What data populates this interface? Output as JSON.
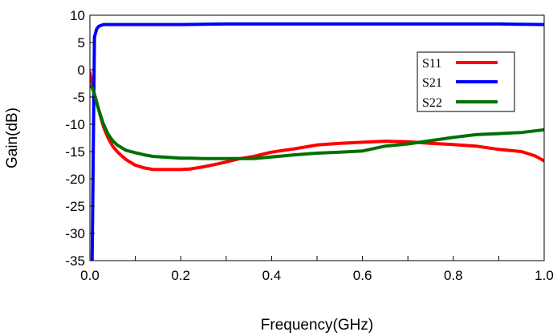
{
  "chart_data": {
    "type": "line",
    "title": "",
    "xlabel": "Frequency(GHz)",
    "ylabel": "Gain(dB)",
    "xlim": [
      0,
      1.0
    ],
    "ylim": [
      -35,
      10
    ],
    "x_ticks": [
      0,
      0.2,
      0.4,
      0.6,
      0.8,
      1.0
    ],
    "x_tick_labels": [
      "0.0",
      "0.2",
      "0.4",
      "0.6",
      "0.8",
      "1.0"
    ],
    "y_ticks": [
      10,
      5,
      0,
      -5,
      -10,
      -15,
      -20,
      -25,
      -30,
      -35
    ],
    "y_tick_labels": [
      "10",
      "5",
      "0",
      "-5",
      "-10",
      "-15",
      "-20",
      "-25",
      "-30",
      "-35"
    ],
    "grid": false,
    "legend_position": "top-right",
    "series": [
      {
        "name": "S11",
        "color": "#ff0000",
        "x": [
          0.0,
          0.005,
          0.01,
          0.02,
          0.03,
          0.04,
          0.05,
          0.06,
          0.07,
          0.08,
          0.09,
          0.1,
          0.12,
          0.14,
          0.16,
          0.18,
          0.2,
          0.22,
          0.25,
          0.28,
          0.3,
          0.33,
          0.36,
          0.4,
          0.45,
          0.5,
          0.55,
          0.6,
          0.65,
          0.7,
          0.75,
          0.8,
          0.85,
          0.9,
          0.95,
          0.98,
          1.0
        ],
        "y": [
          -0.5,
          -2.5,
          -4.5,
          -7.5,
          -10.5,
          -12.5,
          -14.0,
          -15.0,
          -15.8,
          -16.5,
          -17.0,
          -17.5,
          -18.0,
          -18.3,
          -18.3,
          -18.3,
          -18.3,
          -18.2,
          -17.8,
          -17.3,
          -16.9,
          -16.3,
          -15.9,
          -15.1,
          -14.5,
          -13.8,
          -13.5,
          -13.3,
          -13.1,
          -13.2,
          -13.5,
          -13.7,
          -14.0,
          -14.6,
          -15.0,
          -15.8,
          -16.7
        ]
      },
      {
        "name": "S21",
        "color": "#0000ff",
        "x": [
          0.005,
          0.01,
          0.015,
          0.02,
          0.03,
          0.05,
          0.1,
          0.2,
          0.3,
          0.4,
          0.5,
          0.6,
          0.7,
          0.8,
          0.9,
          1.0
        ],
        "y": [
          -35,
          6.0,
          7.5,
          8.0,
          8.3,
          8.3,
          8.3,
          8.3,
          8.4,
          8.4,
          8.4,
          8.4,
          8.4,
          8.4,
          8.4,
          8.3
        ]
      },
      {
        "name": "S22",
        "color": "#007000",
        "x": [
          0.0,
          0.005,
          0.01,
          0.02,
          0.03,
          0.04,
          0.05,
          0.06,
          0.07,
          0.08,
          0.1,
          0.12,
          0.14,
          0.16,
          0.18,
          0.2,
          0.22,
          0.25,
          0.28,
          0.3,
          0.33,
          0.36,
          0.4,
          0.45,
          0.5,
          0.55,
          0.6,
          0.65,
          0.7,
          0.75,
          0.8,
          0.85,
          0.9,
          0.95,
          1.0
        ],
        "y": [
          -3.0,
          -3.2,
          -4.5,
          -7.5,
          -10.0,
          -11.8,
          -13.0,
          -13.8,
          -14.3,
          -14.8,
          -15.2,
          -15.6,
          -15.9,
          -16.0,
          -16.1,
          -16.2,
          -16.2,
          -16.3,
          -16.3,
          -16.3,
          -16.3,
          -16.3,
          -16.0,
          -15.6,
          -15.3,
          -15.1,
          -14.9,
          -14.0,
          -13.6,
          -13.0,
          -12.4,
          -11.9,
          -11.7,
          -11.5,
          -11.0
        ]
      }
    ]
  }
}
